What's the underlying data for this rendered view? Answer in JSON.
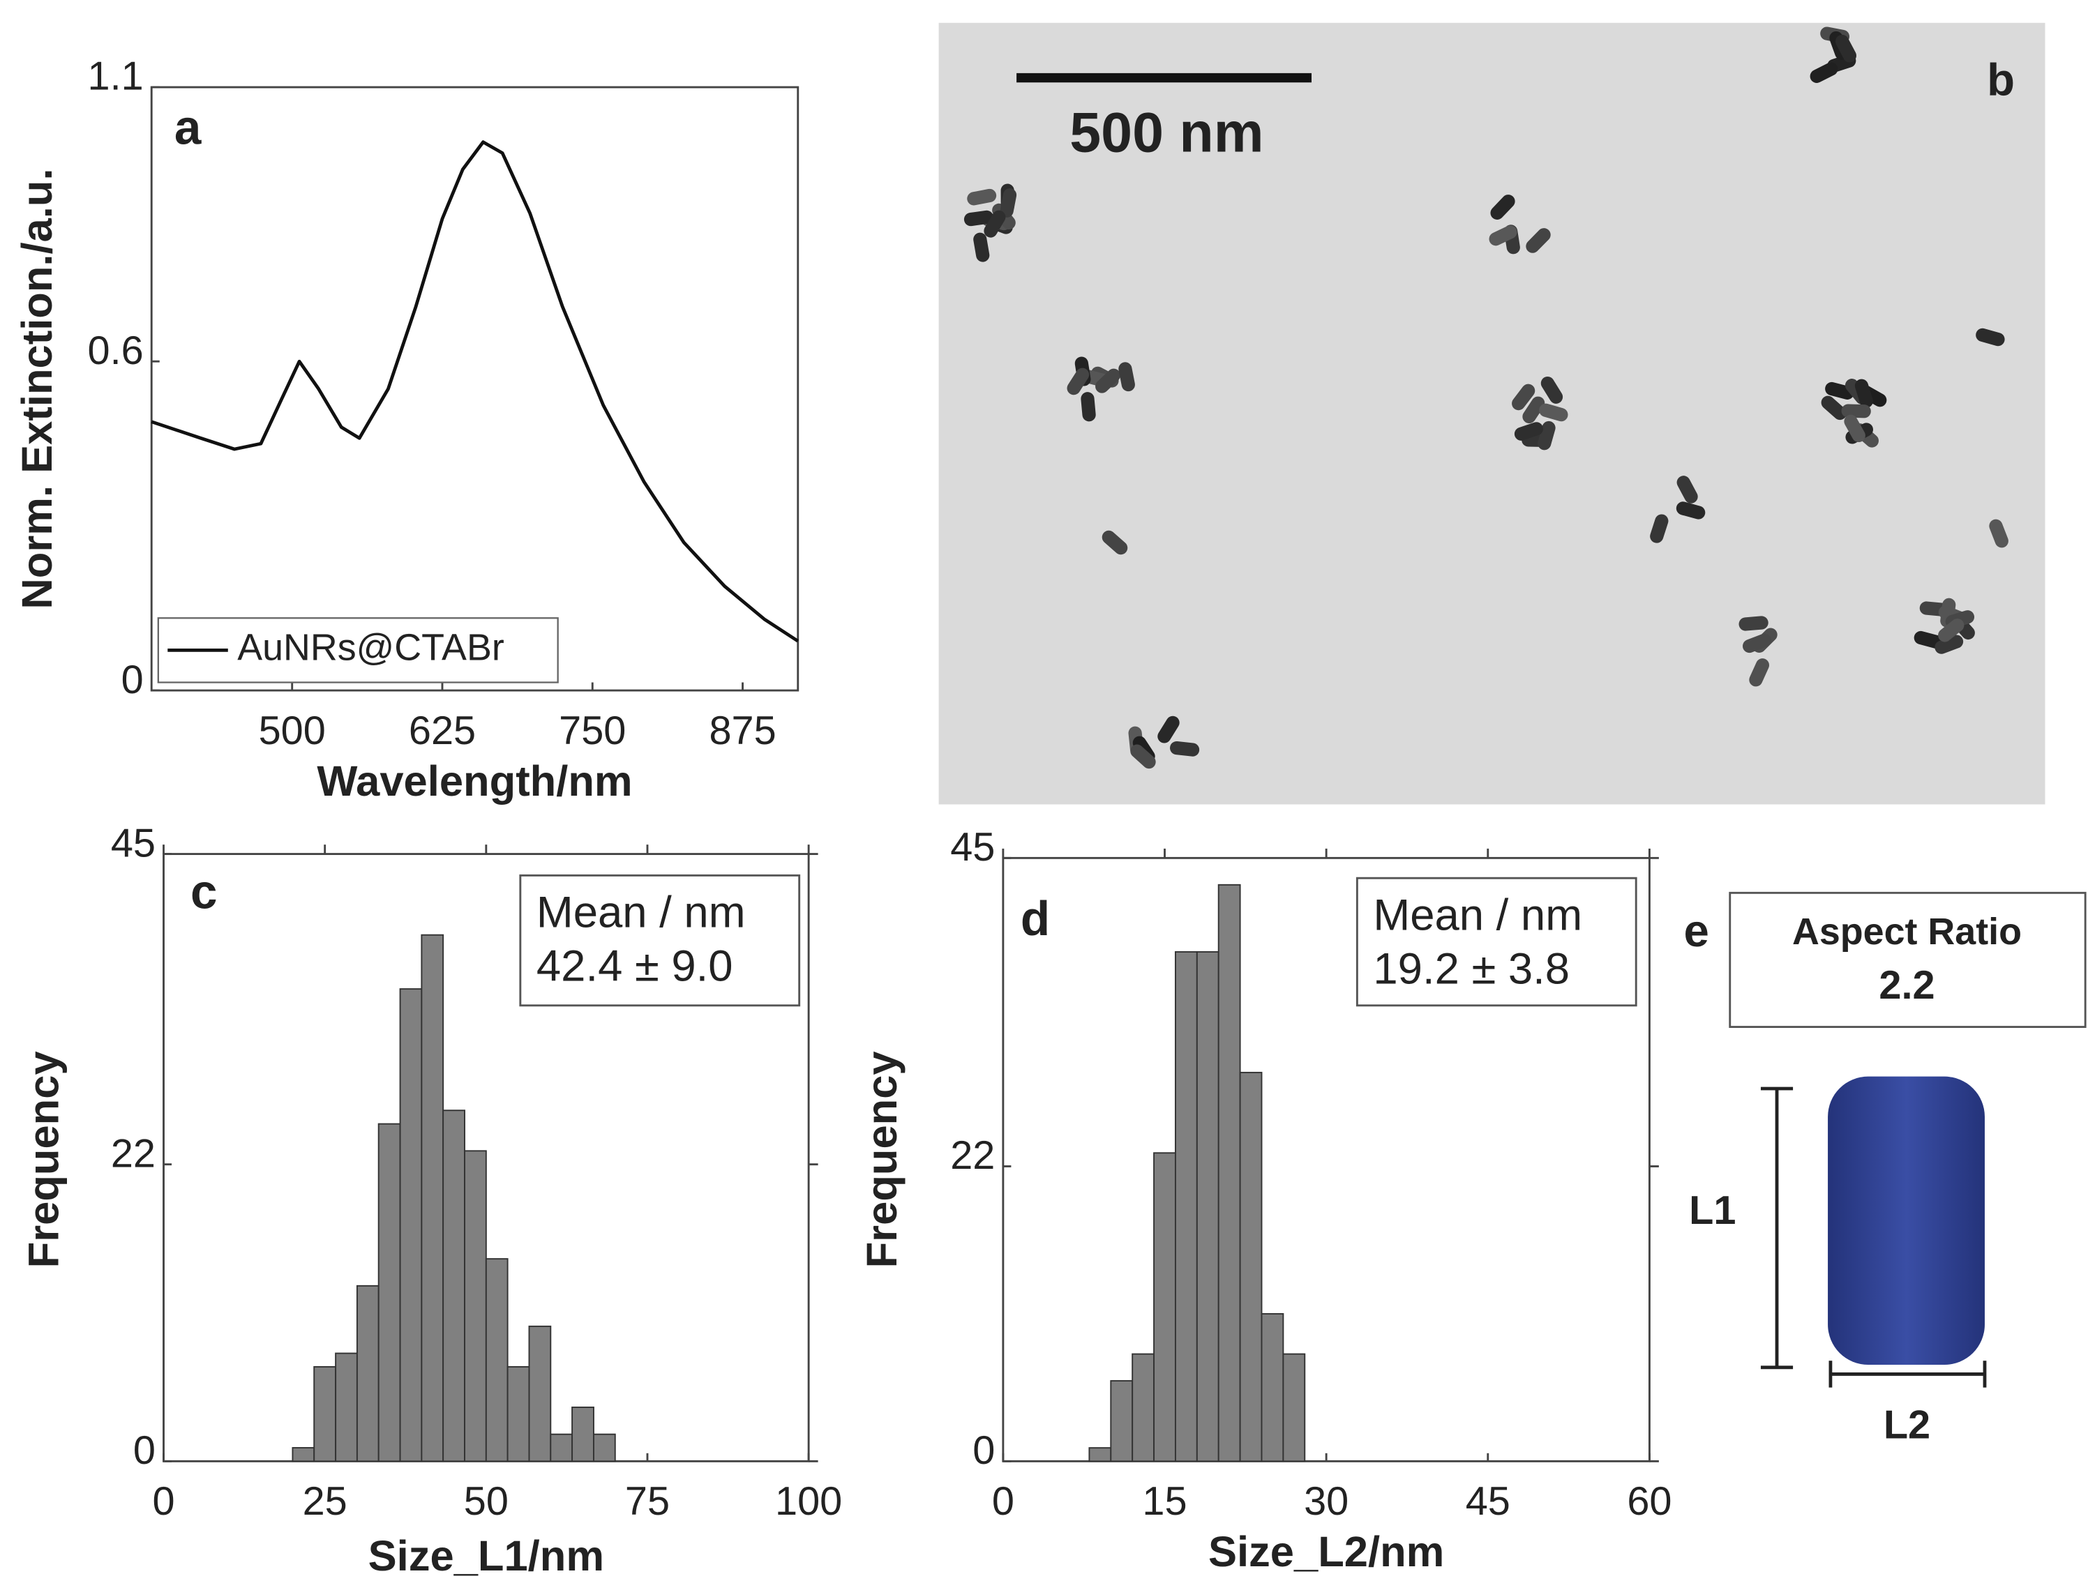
{
  "chart_data": [
    {
      "type": "line",
      "label": "a",
      "x_label": "Wavelength/nm",
      "y_label": "Norm. Extinction./a.u.",
      "x": [
        383,
        424,
        452,
        474,
        491,
        506,
        522,
        541,
        556,
        580,
        603,
        625,
        642,
        659,
        675,
        698,
        725,
        759,
        793,
        826,
        860,
        893,
        921
      ],
      "series": [
        {
          "name": "AuNRs@CTABr",
          "color": "#111111",
          "values": [
            0.49,
            0.46,
            0.44,
            0.45,
            0.53,
            0.6,
            0.55,
            0.48,
            0.46,
            0.55,
            0.7,
            0.86,
            0.95,
            1.0,
            0.98,
            0.87,
            0.7,
            0.52,
            0.38,
            0.27,
            0.19,
            0.13,
            0.09
          ]
        }
      ],
      "xlim": [
        383,
        921
      ],
      "xticks": [
        500,
        625,
        750,
        875
      ],
      "ylim": [
        0,
        1.1
      ],
      "yticks": [
        0,
        0.6,
        1.1
      ],
      "legend": "lower-left"
    },
    {
      "type": "histogram",
      "label": "c",
      "x_label": "Size_L1/nm",
      "y_label": "Frequency",
      "color": "#808080",
      "bins": [
        20,
        23.33,
        26.67,
        30,
        33.33,
        36.67,
        40,
        43.33,
        46.67,
        50,
        53.33,
        56.67,
        60,
        63.33,
        66.67,
        70
      ],
      "values": [
        1,
        7,
        8,
        13,
        25,
        35,
        39,
        26,
        23,
        15,
        7,
        10,
        2,
        4,
        2
      ],
      "xlim": [
        0,
        100
      ],
      "xticks": [
        0,
        25,
        50,
        75,
        100
      ],
      "ylim": [
        0,
        45
      ],
      "yticks": [
        0,
        22,
        45
      ],
      "annotations": [
        "Mean / nm",
        "42.4 ± 9.0"
      ]
    },
    {
      "type": "histogram",
      "label": "d",
      "x_label": "Size_L2/nm",
      "y_label": "Frequency",
      "color": "#808080",
      "bins": [
        8,
        10,
        12,
        14,
        16,
        18,
        20,
        22,
        24,
        26,
        28
      ],
      "values": [
        1,
        6,
        8,
        23,
        38,
        38,
        43,
        29,
        11,
        8
      ],
      "xlim": [
        0,
        60
      ],
      "xticks": [
        0,
        15,
        30,
        45,
        60
      ],
      "ylim": [
        0,
        45
      ],
      "yticks": [
        0,
        22,
        45
      ],
      "annotations": [
        "Mean / nm",
        "19.2 ± 3.8"
      ]
    }
  ],
  "panel_b": {
    "label": "b",
    "scale_bar": "500 nm"
  },
  "panel_e": {
    "label": "e",
    "title": "Aspect Ratio",
    "value": "2.2",
    "length_label": "L1",
    "width_label": "L2"
  }
}
